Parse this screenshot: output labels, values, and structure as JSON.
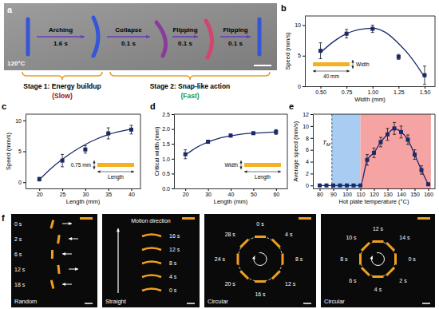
{
  "chart_data": [
    {
      "panel": "b",
      "type": "scatter",
      "x_label": "Width (mm)",
      "y_label": "Speed (mm/s)",
      "xlim": [
        0.35,
        1.6
      ],
      "ylim": [
        0,
        11.5
      ],
      "xticks": [
        {
          "value": 0.5,
          "label": "0.50"
        },
        0.75,
        {
          "value": 1,
          "label": "1.00"
        },
        1.25,
        {
          "value": 1.5,
          "label": "1.50"
        }
      ],
      "yticks": [
        0,
        5,
        10
      ],
      "series": [
        {
          "type": "scatter",
          "marker": "square",
          "color": "#1b2a6b",
          "x": [
            0.5,
            0.75,
            1.0,
            1.25,
            1.5
          ],
          "values": [
            5.8,
            8.6,
            9.4,
            4.8,
            1.8
          ],
          "errors": [
            1.3,
            0.7,
            0.6,
            0.4,
            1.5
          ]
        },
        {
          "type": "line",
          "color": "#1b2a6b",
          "x": [
            0.5,
            0.625,
            0.75,
            0.875,
            1.0,
            1.125,
            1.25,
            1.375,
            1.5
          ],
          "values": [
            5.5,
            7.3,
            8.6,
            9.3,
            9.5,
            8.8,
            7.0,
            4.6,
            1.5
          ]
        }
      ],
      "inset": {
        "color": "#f5b021",
        "label_below": "40 mm",
        "label_right": "Width"
      }
    },
    {
      "panel": "c",
      "type": "scatter",
      "x_label": "Length (mm)",
      "y_label": "Speed (mm/s)",
      "xlim": [
        17,
        42
      ],
      "ylim": [
        -1,
        11
      ],
      "xticks": [
        20,
        25,
        30,
        35,
        40
      ],
      "yticks": [
        0,
        5,
        10
      ],
      "series": [
        {
          "type": "scatter",
          "marker": "square",
          "color": "#1b2a6b",
          "x": [
            20,
            25,
            30,
            35,
            40
          ],
          "values": [
            0.5,
            3.5,
            5.3,
            7.9,
            8.5
          ],
          "errors": [
            0.3,
            1.0,
            0.6,
            0.9,
            0.7
          ]
        },
        {
          "type": "line",
          "color": "#1b2a6b",
          "x": [
            20,
            22.5,
            25,
            27.5,
            30,
            32.5,
            35,
            37.5,
            40
          ],
          "values": [
            0.4,
            2.2,
            3.7,
            5.0,
            6.1,
            7.0,
            7.7,
            8.2,
            8.6
          ]
        }
      ],
      "inset": {
        "color": "#f5b021",
        "label_left": "0.75 mm",
        "label_below": "Length"
      }
    },
    {
      "panel": "d",
      "type": "scatter",
      "x_label": "Length (mm)",
      "y_label": "Critical width (mm)",
      "xlim": [
        15,
        65
      ],
      "ylim": [
        0,
        2.5
      ],
      "xticks": [
        20,
        30,
        40,
        50,
        60
      ],
      "yticks": [
        {
          "value": 0,
          "label": "0.0"
        },
        0.5,
        {
          "value": 1,
          "label": "1.0"
        },
        1.5,
        {
          "value": 2,
          "label": "2.0"
        },
        2.5
      ],
      "series": [
        {
          "type": "scatter",
          "marker": "square",
          "color": "#1b2a6b",
          "x": [
            20,
            30,
            40,
            50,
            60
          ],
          "values": [
            1.15,
            1.57,
            1.78,
            1.86,
            1.9
          ],
          "errors": [
            0.15,
            0.05,
            0.05,
            0.04,
            0.08
          ]
        },
        {
          "type": "line",
          "color": "#1b2a6b",
          "x": [
            20,
            25,
            30,
            35,
            40,
            45,
            50,
            55,
            60
          ],
          "values": [
            1.12,
            1.38,
            1.56,
            1.69,
            1.77,
            1.83,
            1.86,
            1.88,
            1.9
          ]
        }
      ],
      "inset": {
        "color": "#f5b021",
        "label_left": "Width",
        "label_below": "Length"
      }
    },
    {
      "panel": "e",
      "type": "line",
      "x_label": "Hot plate temperature (°C)",
      "y_label": "Average speed (mm/s)",
      "xlim": [
        75,
        165
      ],
      "ylim": [
        -0.5,
        12
      ],
      "xticks": [
        80,
        90,
        100,
        110,
        120,
        130,
        140,
        150,
        160
      ],
      "yticks": [
        0,
        2,
        4,
        6,
        8,
        10,
        12
      ],
      "regions": [
        {
          "from": 89,
          "to": 110,
          "color": "#a9cdf2"
        },
        {
          "from": 110,
          "to": 162,
          "color": "#f6a3a3"
        }
      ],
      "annotations": [
        {
          "text": "T",
          "subscript": "M",
          "x": 89
        }
      ],
      "series": [
        {
          "marker": "square",
          "color": "#1b2a6b",
          "x": [
            80,
            85,
            90,
            95,
            100,
            105,
            110,
            115,
            120,
            125,
            130,
            135,
            140,
            145,
            150,
            155,
            160
          ],
          "values": [
            0,
            0,
            0,
            0,
            0,
            0,
            0,
            4.3,
            5.5,
            7.3,
            8.6,
            9.6,
            9.0,
            7.7,
            5.2,
            2.6,
            0.2
          ],
          "errors": [
            0,
            0,
            0,
            0,
            0,
            0,
            0,
            0.9,
            0.8,
            0.8,
            1.0,
            1.0,
            1.0,
            0.8,
            0.8,
            0.7,
            0.2
          ]
        }
      ]
    }
  ],
  "photo_a": {
    "label": "a",
    "temperature": "120°C",
    "steps": [
      {
        "label": "Arching",
        "time": "1.6 s"
      },
      {
        "label": "Collapse",
        "time": "0.1 s"
      },
      {
        "label": "Flipping",
        "time": "0.1 s"
      },
      {
        "label": "Flipping",
        "time": "0.1 s"
      }
    ],
    "stages": [
      {
        "title": "Stage 1: Energy buildup",
        "speed": "(Slow)",
        "color": "#a01010"
      },
      {
        "title": "Stage 2: Snap-like action",
        "speed": "(Fast)",
        "color": "#1a9a3a"
      }
    ]
  },
  "photo_f": {
    "label": "f",
    "panels": [
      {
        "title": "Random",
        "times": [
          "0 s",
          "2 s",
          "6 s",
          "12 s",
          "18 s"
        ]
      },
      {
        "title": "Straight",
        "heading": "Motion direction",
        "times": [
          "16 s",
          "12 s",
          "8 s",
          "4 s",
          "0 s"
        ]
      },
      {
        "title": "Circular",
        "times": [
          "0 s",
          "4 s",
          "8 s",
          "12 s",
          "16 s",
          "20 s",
          "24 s",
          "28 s"
        ]
      },
      {
        "title": "Circular",
        "times": [
          "0 s",
          "2 s",
          "4 s",
          "6 s",
          "8 s",
          "10 s",
          "12 s",
          "14 s"
        ]
      }
    ]
  }
}
